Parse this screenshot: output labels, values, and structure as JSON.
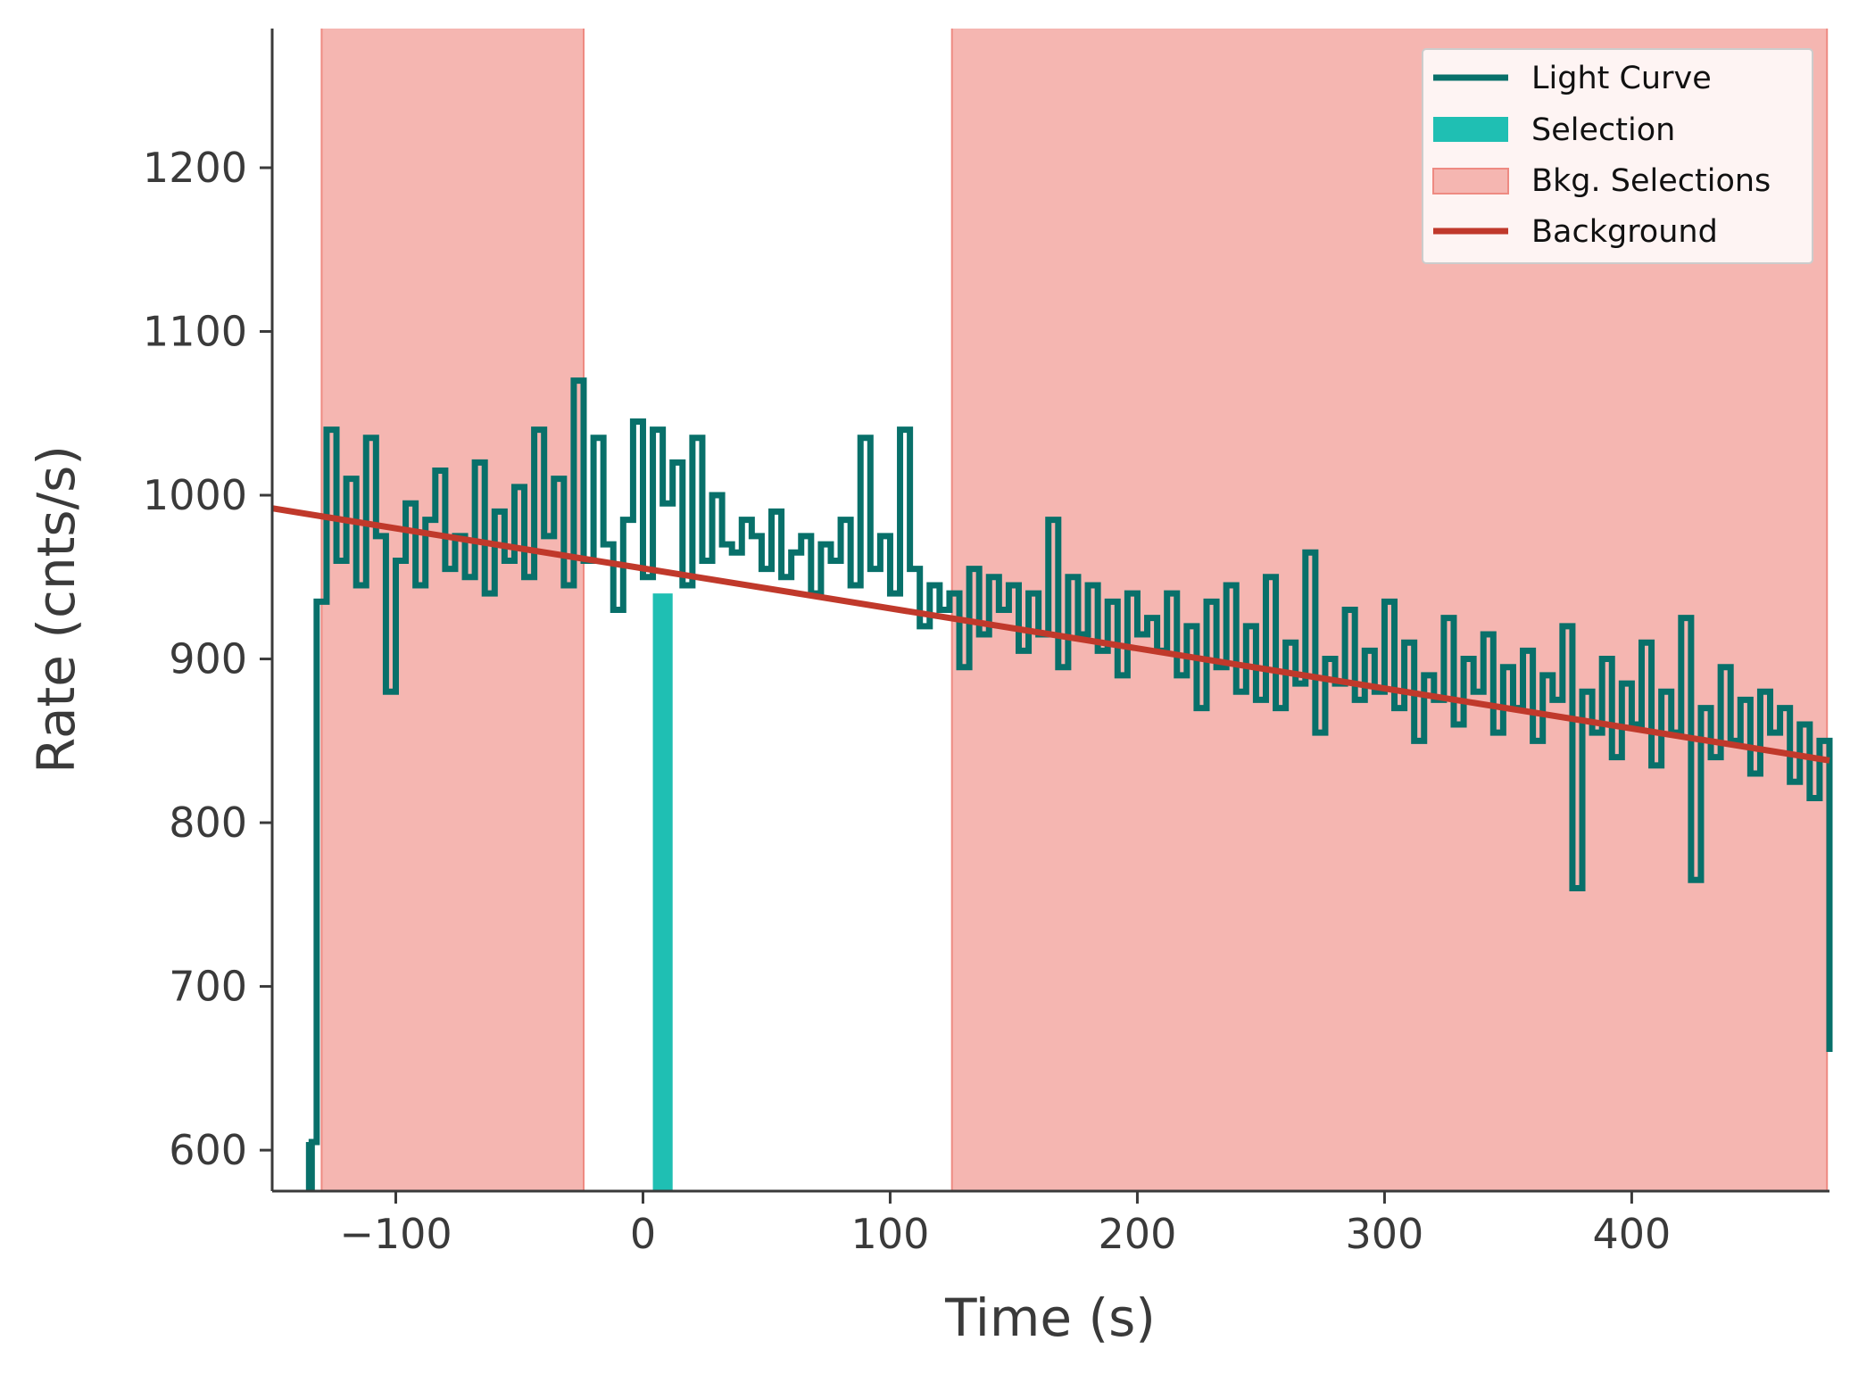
{
  "chart_data": {
    "type": "line",
    "title": "",
    "xlabel": "Time (s)",
    "ylabel": "Rate (cnts/s)",
    "xlim": [
      -150,
      480
    ],
    "ylim": [
      575,
      1285
    ],
    "x_ticks": [
      -100,
      0,
      100,
      200,
      300,
      400
    ],
    "x_tick_labels": [
      "−100",
      "0",
      "100",
      "200",
      "300",
      "400"
    ],
    "y_ticks": [
      600,
      700,
      800,
      900,
      1000,
      1100,
      1200
    ],
    "y_tick_labels": [
      "600",
      "700",
      "800",
      "900",
      "1000",
      "1100",
      "1200"
    ],
    "grid": false,
    "legend_position": "top-right",
    "series": [
      {
        "name": "Light Curve",
        "type": "step",
        "color": "#08706a",
        "x_start": -134,
        "x_end": 480,
        "x": [
          -134,
          -132,
          -128,
          -124,
          -120,
          -116,
          -112,
          -108,
          -104,
          -100,
          -96,
          -92,
          -88,
          -84,
          -80,
          -76,
          -72,
          -68,
          -64,
          -60,
          -56,
          -52,
          -48,
          -44,
          -40,
          -36,
          -32,
          -28,
          -24,
          -20,
          -16,
          -12,
          -8,
          -4,
          0,
          4,
          8,
          12,
          16,
          20,
          24,
          28,
          32,
          36,
          40,
          44,
          48,
          52,
          56,
          60,
          64,
          68,
          72,
          76,
          80,
          84,
          88,
          92,
          96,
          100,
          104,
          108,
          112,
          116,
          120,
          124,
          128,
          132,
          136,
          140,
          144,
          148,
          152,
          156,
          160,
          164,
          168,
          172,
          176,
          180,
          184,
          188,
          192,
          196,
          200,
          204,
          208,
          212,
          216,
          220,
          224,
          228,
          232,
          236,
          240,
          244,
          248,
          252,
          256,
          260,
          264,
          268,
          272,
          276,
          280,
          284,
          288,
          292,
          296,
          300,
          304,
          308,
          312,
          316,
          320,
          324,
          328,
          332,
          336,
          340,
          344,
          348,
          352,
          356,
          360,
          364,
          368,
          372,
          376,
          380,
          384,
          388,
          392,
          396,
          400,
          404,
          408,
          412,
          416,
          420,
          424,
          428,
          432,
          436,
          440,
          444,
          448,
          452,
          456,
          460,
          464,
          468,
          472,
          476
        ],
        "y": [
          605,
          935,
          1040,
          960,
          1010,
          945,
          1035,
          975,
          880,
          960,
          995,
          945,
          985,
          1015,
          955,
          975,
          950,
          1020,
          940,
          990,
          960,
          1005,
          950,
          1040,
          975,
          1010,
          945,
          1070,
          960,
          1035,
          970,
          930,
          985,
          1045,
          950,
          1040,
          995,
          1020,
          945,
          1035,
          960,
          1000,
          970,
          965,
          985,
          975,
          955,
          990,
          950,
          965,
          975,
          940,
          970,
          960,
          985,
          945,
          1035,
          955,
          975,
          940,
          1040,
          955,
          920,
          945,
          930,
          940,
          895,
          955,
          915,
          950,
          930,
          945,
          905,
          940,
          915,
          985,
          895,
          950,
          915,
          945,
          905,
          935,
          890,
          940,
          915,
          925,
          905,
          940,
          890,
          920,
          870,
          935,
          895,
          945,
          880,
          920,
          875,
          950,
          870,
          910,
          885,
          965,
          855,
          900,
          885,
          930,
          875,
          905,
          880,
          935,
          870,
          910,
          850,
          890,
          875,
          925,
          860,
          900,
          880,
          915,
          855,
          895,
          870,
          905,
          850,
          890,
          875,
          920,
          760,
          880,
          855,
          900,
          840,
          885,
          860,
          910,
          835,
          880,
          855,
          925,
          765,
          870,
          840,
          895,
          850,
          875,
          830,
          880,
          855,
          870,
          825,
          860,
          815,
          850
        ]
      },
      {
        "name": "Background",
        "type": "line",
        "color": "#c0392b",
        "x": [
          -150,
          480
        ],
        "y": [
          992,
          838
        ]
      }
    ],
    "selection": {
      "name": "Selection",
      "color": "#1fbfb3",
      "x_range": [
        4,
        12
      ]
    },
    "bkg_selections": {
      "name": "Bkg. Selections",
      "color": "#f5b6b1",
      "edge_color": "#ee8a82",
      "ranges": [
        [
          -130,
          -24
        ],
        [
          125,
          479
        ]
      ]
    }
  }
}
